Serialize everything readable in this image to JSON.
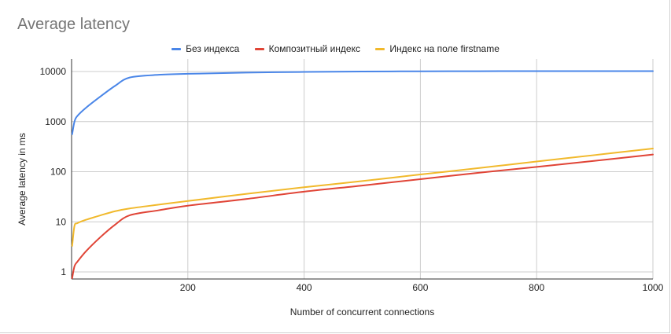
{
  "chart_data": {
    "type": "line",
    "title": "Average latency",
    "xlabel": "Number of concurrent connections",
    "ylabel": "Average latency in ms",
    "x_scale": "linear",
    "y_scale": "log",
    "xlim": [
      0,
      1000
    ],
    "ylim": [
      0.6,
      14000
    ],
    "x_ticks": [
      200,
      400,
      600,
      800,
      1000
    ],
    "x_tick_labels": [
      "200",
      "400",
      "600",
      "800",
      "1000"
    ],
    "y_ticks": [
      1,
      10,
      100,
      1000,
      10000
    ],
    "y_tick_labels": [
      "1",
      "10",
      "100",
      "1000",
      "10000"
    ],
    "grid": true,
    "legend_position": "top",
    "series": [
      {
        "name": "Без индекса",
        "color": "#4a86e8",
        "x": [
          1,
          5,
          10,
          25,
          50,
          75,
          100,
          150,
          200,
          300,
          400,
          500,
          600,
          700,
          800,
          900,
          1000
        ],
        "values": [
          560,
          1000,
          1300,
          1900,
          3200,
          5200,
          7600,
          8600,
          9000,
          9500,
          9800,
          10000,
          10100,
          10150,
          10200,
          10200,
          10200
        ]
      },
      {
        "name": "Композитный индекс",
        "color": "#e04436",
        "x": [
          1,
          5,
          10,
          25,
          50,
          75,
          100,
          150,
          200,
          300,
          400,
          500,
          600,
          700,
          800,
          900,
          1000
        ],
        "values": [
          0.75,
          1.3,
          1.6,
          2.6,
          5.0,
          8.8,
          13.5,
          17,
          21,
          28.5,
          40,
          53,
          71,
          95,
          125,
          165,
          220
        ]
      },
      {
        "name": "Индекс на поле firstname",
        "color": "#f1b92c",
        "x": [
          1,
          5,
          10,
          25,
          50,
          75,
          100,
          150,
          200,
          300,
          400,
          500,
          600,
          700,
          800,
          900,
          1000
        ],
        "values": [
          3.3,
          8.3,
          9.4,
          11,
          13.5,
          16.3,
          18.5,
          22,
          26,
          36,
          49,
          65,
          88,
          118,
          160,
          215,
          290
        ]
      }
    ]
  }
}
